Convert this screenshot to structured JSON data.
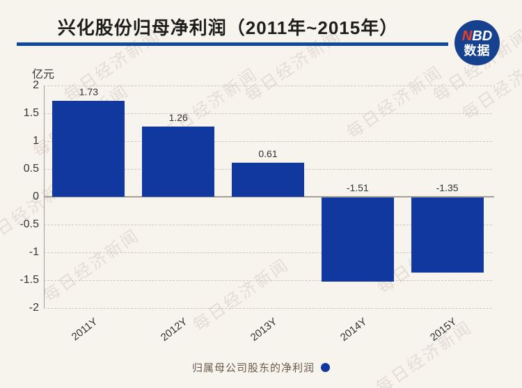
{
  "header": {
    "title": "兴化股份归母净利润（2011年~2015年）",
    "logo": {
      "n": "N",
      "bd": "BD",
      "subtitle": "数据"
    }
  },
  "chart_data": {
    "type": "bar",
    "title": "兴化股份归母净利润（2011年~2015年）",
    "unit_label": "亿元",
    "categories": [
      "2011Y",
      "2012Y",
      "2013Y",
      "2014Y",
      "2015Y"
    ],
    "series": [
      {
        "name": "归属母公司股东的净利润",
        "values": [
          1.73,
          1.26,
          0.61,
          -1.51,
          -1.35
        ]
      }
    ],
    "data_labels": [
      "1.73",
      "1.26",
      "0.61",
      "-1.51",
      "-1.35"
    ],
    "ylim": [
      -2,
      2
    ],
    "yticks": [
      "2",
      "1.5",
      "1",
      "0.5",
      "0",
      "-0.5",
      "-1",
      "-1.5",
      "-2"
    ],
    "grid": true,
    "legend_position": "bottom",
    "bar_color": "#11389e"
  },
  "legend": {
    "label": "归属母公司股东的净利润"
  },
  "watermark": {
    "text": "每日经济新闻"
  },
  "colors": {
    "background": "#f7f3ed",
    "bar": "#11389e",
    "title_rule": "#0e4a99",
    "logo_circle": "#16418f",
    "logo_n": "#ee3d23",
    "legend_text": "#6a5a4e"
  }
}
